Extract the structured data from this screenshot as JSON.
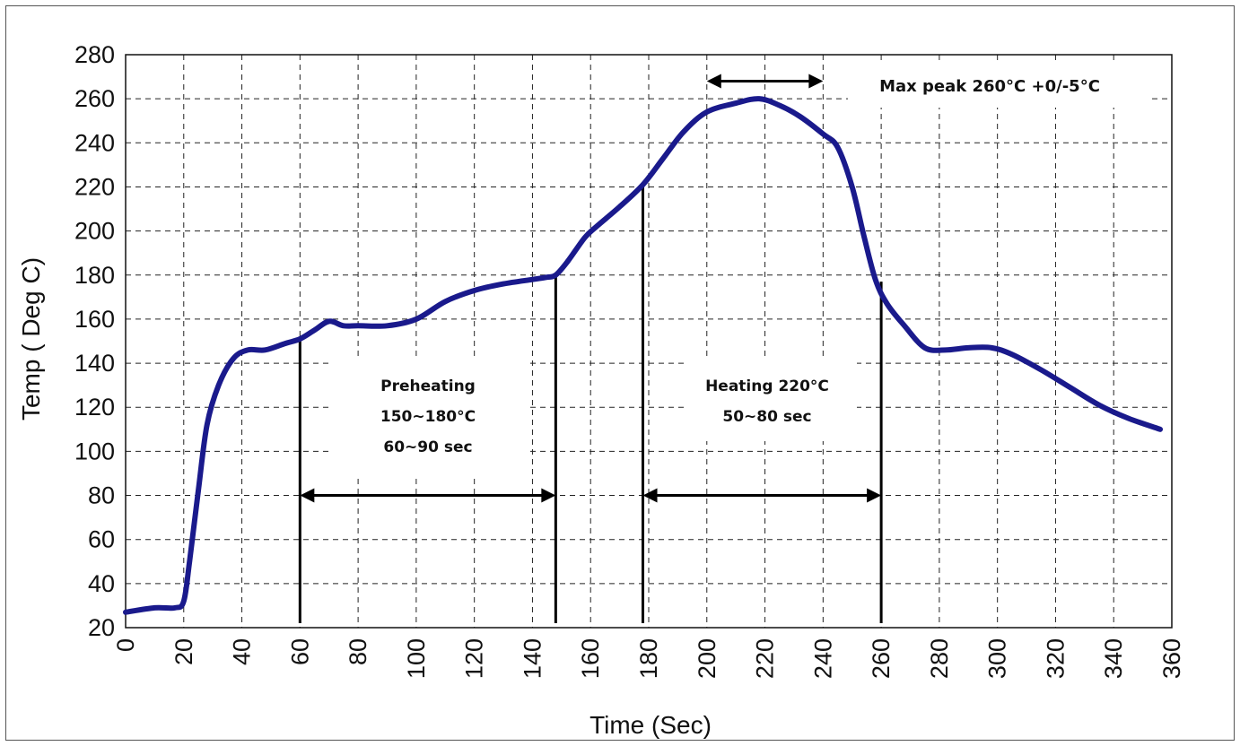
{
  "chart_data": {
    "type": "line",
    "xlabel": "Time (Sec)",
    "ylabel": "Temp ( Deg C)",
    "xlim": [
      0,
      360
    ],
    "ylim": [
      20,
      280
    ],
    "xticks": [
      0,
      20,
      40,
      60,
      80,
      100,
      120,
      140,
      160,
      180,
      200,
      220,
      240,
      260,
      280,
      300,
      320,
      340,
      360
    ],
    "yticks": [
      20,
      40,
      60,
      80,
      100,
      120,
      140,
      160,
      180,
      200,
      220,
      240,
      260,
      280
    ],
    "grid": true,
    "line_color": "#1a1a8c",
    "series": [
      {
        "x": [
          0,
          10,
          17,
          20,
          22,
          25,
          28,
          32,
          37,
          42,
          48,
          55,
          60,
          65,
          70,
          75,
          80,
          90,
          100,
          110,
          120,
          130,
          140,
          145,
          148,
          152,
          158,
          162,
          170,
          178,
          185,
          192,
          200,
          210,
          218,
          225,
          232,
          240,
          245,
          250,
          254,
          258,
          262,
          268,
          275,
          282,
          290,
          298,
          305,
          315,
          325,
          335,
          345,
          356
        ],
        "y": [
          27,
          29,
          29,
          32,
          50,
          82,
          112,
          130,
          142,
          146,
          146,
          149,
          151,
          155,
          159,
          157,
          157,
          157,
          160,
          168,
          173,
          176,
          178,
          179,
          180,
          186,
          197,
          202,
          211,
          221,
          233,
          245,
          254,
          258,
          260,
          257,
          252,
          244,
          238,
          220,
          198,
          178,
          167,
          157,
          147,
          146,
          147,
          147,
          144,
          137,
          129,
          121,
          115,
          110
        ]
      }
    ],
    "annotations": {
      "peak": "Max peak 260°C +0/-5°C",
      "pre_line1": "Preheating",
      "pre_line2": "150~180°C",
      "pre_line3": "60~90 sec",
      "heat_line1": "Heating 220°C",
      "heat_line2": "50~80 sec"
    }
  }
}
